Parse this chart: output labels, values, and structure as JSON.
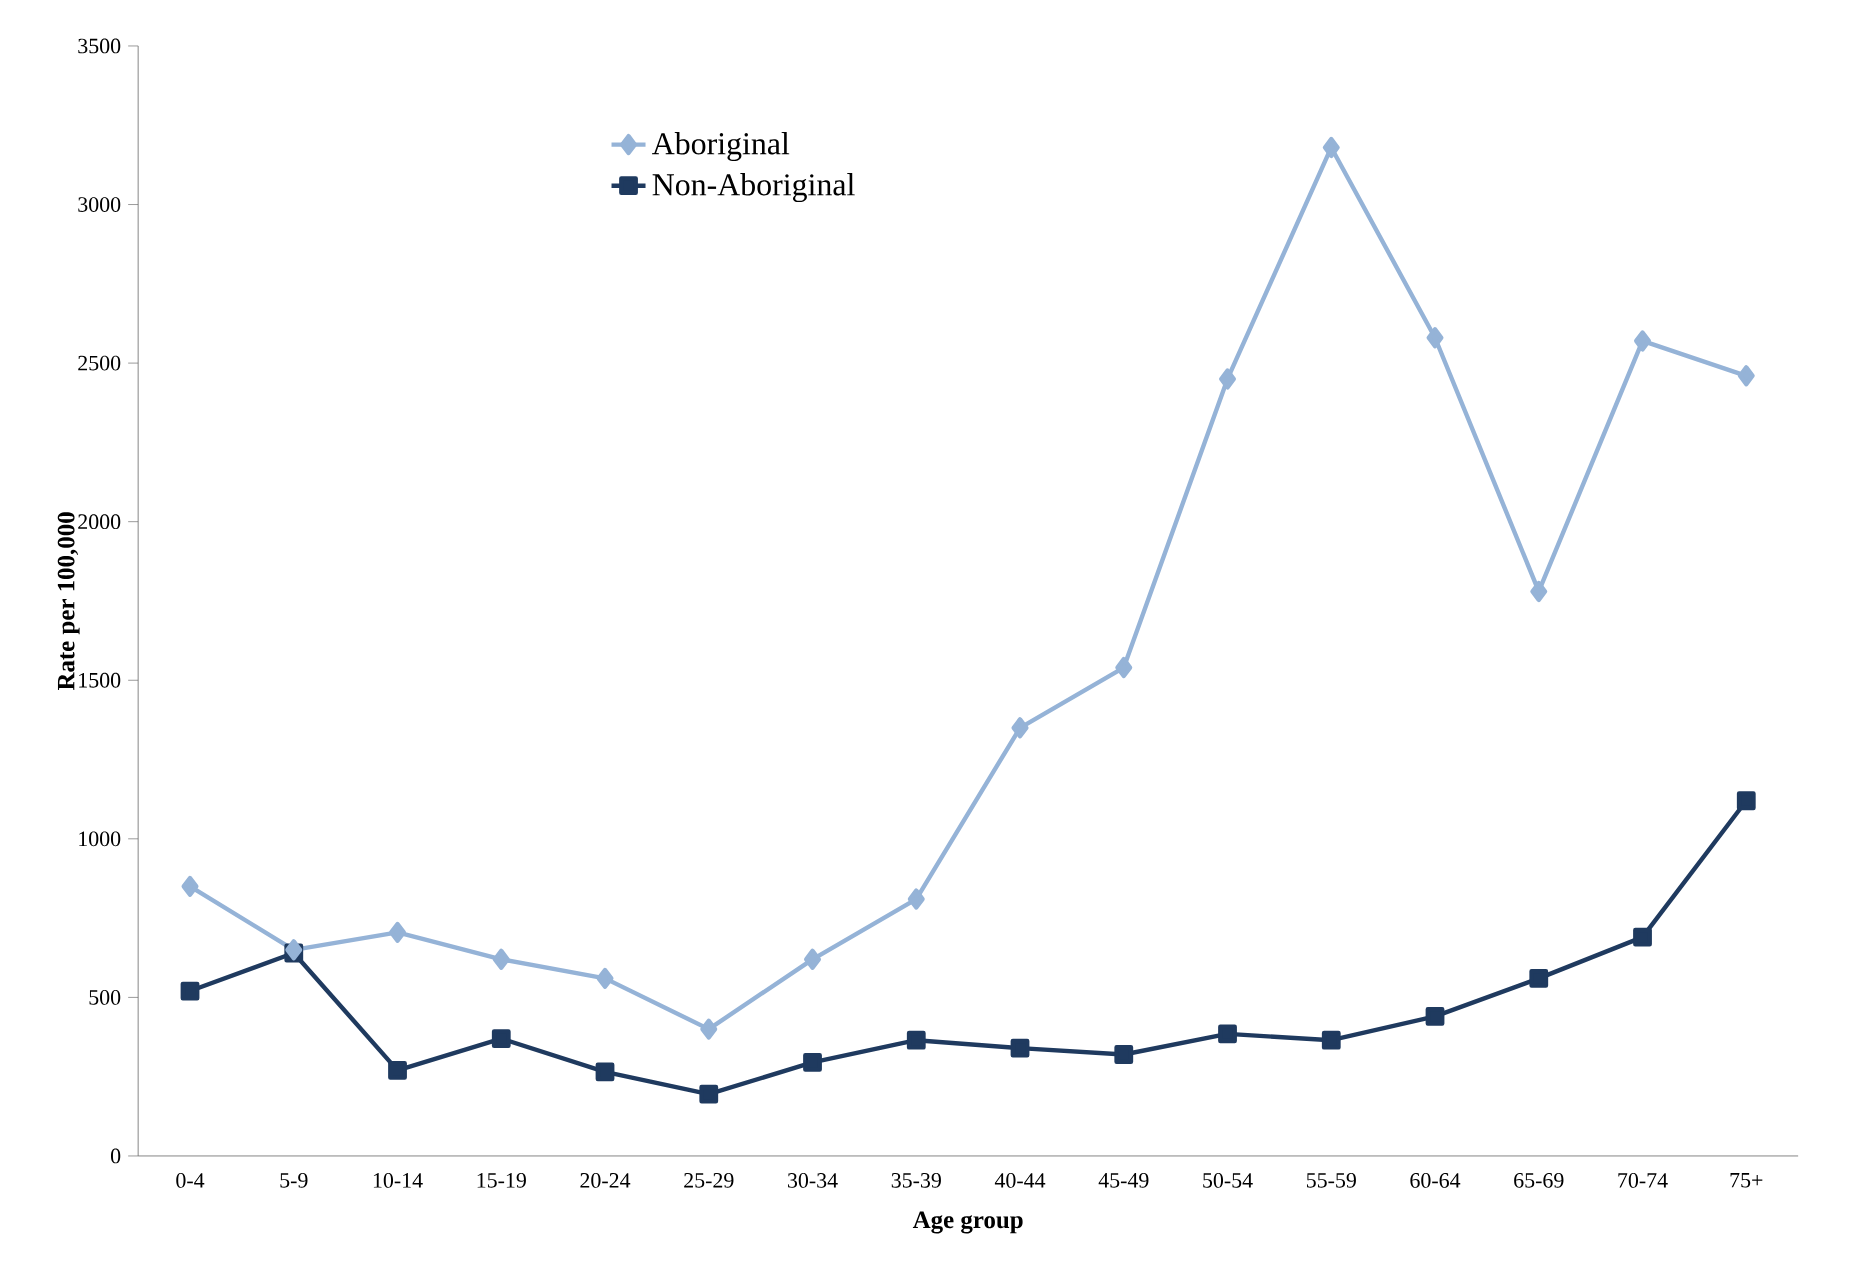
{
  "chart_data": {
    "type": "line",
    "xlabel": "Age group",
    "ylabel": "Rate per 100,000",
    "categories": [
      "0-4",
      "5-9",
      "10-14",
      "15-19",
      "20-24",
      "25-29",
      "30-34",
      "35-39",
      "40-44",
      "45-49",
      "50-54",
      "55-59",
      "60-64",
      "65-69",
      "70-74",
      "75+"
    ],
    "series": [
      {
        "name": "Aboriginal",
        "color": "#95b3d7",
        "marker": "diamond",
        "values": [
          850,
          650,
          705,
          620,
          560,
          400,
          620,
          810,
          1350,
          1540,
          2450,
          3180,
          2580,
          1780,
          2570,
          2460
        ]
      },
      {
        "name": "Non-Aboriginal",
        "color": "#1f3a5f",
        "marker": "square",
        "values": [
          520,
          640,
          270,
          370,
          265,
          195,
          295,
          365,
          340,
          320,
          385,
          365,
          440,
          560,
          690,
          1120
        ]
      }
    ],
    "ylim": [
      0,
      3500
    ],
    "yticks": [
      0,
      500,
      1000,
      1500,
      2000,
      2500,
      3000,
      3500
    ],
    "grid": false,
    "legend": "top",
    "line_style": "solid"
  }
}
